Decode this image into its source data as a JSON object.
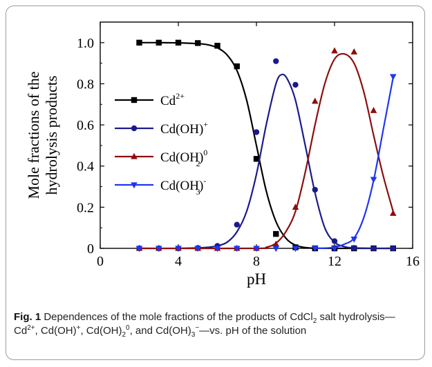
{
  "chart_data": {
    "type": "line",
    "xlabel": "pH",
    "ylabel_lines": [
      "Mole fractions of the",
      "hydrolysis products"
    ],
    "xlim": [
      0,
      16
    ],
    "ylim": [
      0,
      1.1
    ],
    "x_ticks": [
      0,
      4,
      8,
      12,
      16
    ],
    "y_ticks": [
      0,
      0.2,
      0.4,
      0.6,
      0.8,
      1.0
    ],
    "x_tick_labels": [
      "0",
      "4",
      "8",
      "12",
      "16"
    ],
    "y_tick_labels": [
      "0",
      "0.2",
      "0.4",
      "0.6",
      "0.8",
      "1.0"
    ],
    "grid": false,
    "legend_position": "left",
    "series": [
      {
        "name": "Cd2+",
        "legend_base": "Cd",
        "legend_sup": "2+",
        "legend_sub": "",
        "color": "#000000",
        "marker": "square",
        "points": [
          [
            2,
            1.0
          ],
          [
            3,
            1.0
          ],
          [
            4,
            1.0
          ],
          [
            5,
            0.998
          ],
          [
            6,
            0.985
          ],
          [
            7,
            0.885
          ],
          [
            8,
            0.435
          ],
          [
            9,
            0.07
          ],
          [
            10,
            0.005
          ],
          [
            11,
            0.0
          ],
          [
            12,
            0.0
          ],
          [
            13,
            0.0
          ],
          [
            14,
            0.0
          ],
          [
            15,
            0.0
          ]
        ],
        "curve": [
          [
            2,
            1.0
          ],
          [
            3,
            1.0
          ],
          [
            4,
            0.999
          ],
          [
            5,
            0.995
          ],
          [
            5.5,
            0.99
          ],
          [
            6,
            0.975
          ],
          [
            6.5,
            0.94
          ],
          [
            7,
            0.865
          ],
          [
            7.5,
            0.72
          ],
          [
            8,
            0.5
          ],
          [
            8.5,
            0.28
          ],
          [
            9,
            0.13
          ],
          [
            9.5,
            0.05
          ],
          [
            10,
            0.015
          ],
          [
            10.5,
            0.004
          ],
          [
            11,
            0.001
          ],
          [
            12,
            0.0
          ],
          [
            15,
            0.0
          ]
        ]
      },
      {
        "name": "Cd(OH)+",
        "legend_base": "Cd(OH)",
        "legend_sup": "+",
        "legend_sub": "",
        "color": "#1a1a8c",
        "marker": "circle",
        "points": [
          [
            2,
            0.0
          ],
          [
            3,
            0.0
          ],
          [
            4,
            0.0
          ],
          [
            5,
            0.002
          ],
          [
            6,
            0.012
          ],
          [
            7,
            0.115
          ],
          [
            8,
            0.565
          ],
          [
            9,
            0.91
          ],
          [
            10,
            0.795
          ],
          [
            11,
            0.285
          ],
          [
            12,
            0.035
          ],
          [
            13,
            0.002
          ],
          [
            14,
            0.0
          ],
          [
            15,
            0.0
          ]
        ],
        "curve": [
          [
            2,
            0.0
          ],
          [
            4,
            0.0
          ],
          [
            5,
            0.002
          ],
          [
            5.5,
            0.005
          ],
          [
            6,
            0.012
          ],
          [
            6.5,
            0.03
          ],
          [
            7,
            0.08
          ],
          [
            7.5,
            0.18
          ],
          [
            8,
            0.36
          ],
          [
            8.5,
            0.6
          ],
          [
            9,
            0.8
          ],
          [
            9.3,
            0.845
          ],
          [
            9.6,
            0.82
          ],
          [
            10,
            0.72
          ],
          [
            10.5,
            0.5
          ],
          [
            11,
            0.27
          ],
          [
            11.5,
            0.1
          ],
          [
            12,
            0.03
          ],
          [
            12.5,
            0.008
          ],
          [
            13,
            0.002
          ],
          [
            14,
            0.0
          ],
          [
            15,
            0.0
          ]
        ]
      },
      {
        "name": "Cd(OH)2 0",
        "legend_base": "Cd(OH)",
        "legend_sup": "0",
        "legend_sub": "2",
        "color": "#8b0d0d",
        "marker": "triangle-up",
        "points": [
          [
            2,
            0.0
          ],
          [
            3,
            0.0
          ],
          [
            4,
            0.0
          ],
          [
            5,
            0.0
          ],
          [
            6,
            0.0
          ],
          [
            7,
            0.0
          ],
          [
            8,
            0.0
          ],
          [
            9,
            0.02
          ],
          [
            10,
            0.2
          ],
          [
            11,
            0.715
          ],
          [
            12,
            0.96
          ],
          [
            13,
            0.955
          ],
          [
            14,
            0.67
          ],
          [
            15,
            0.17
          ]
        ],
        "curve": [
          [
            2,
            0.0
          ],
          [
            8,
            0.0
          ],
          [
            8.5,
            0.005
          ],
          [
            9,
            0.025
          ],
          [
            9.5,
            0.08
          ],
          [
            10,
            0.18
          ],
          [
            10.5,
            0.37
          ],
          [
            11,
            0.6
          ],
          [
            11.5,
            0.8
          ],
          [
            12,
            0.92
          ],
          [
            12.5,
            0.945
          ],
          [
            13,
            0.9
          ],
          [
            13.5,
            0.76
          ],
          [
            14,
            0.55
          ],
          [
            14.5,
            0.35
          ],
          [
            15,
            0.18
          ]
        ]
      },
      {
        "name": "Cd(OH)3 -",
        "legend_base": "Cd(OH)",
        "legend_sup": "-",
        "legend_sub": "3",
        "color": "#1f35f0",
        "marker": "triangle-down",
        "points": [
          [
            2,
            0.0
          ],
          [
            3,
            0.0
          ],
          [
            4,
            0.0
          ],
          [
            5,
            0.0
          ],
          [
            6,
            0.0
          ],
          [
            7,
            0.0
          ],
          [
            8,
            0.0
          ],
          [
            9,
            0.0
          ],
          [
            10,
            0.0
          ],
          [
            11,
            0.0
          ],
          [
            12,
            0.0
          ],
          [
            13,
            0.045
          ],
          [
            14,
            0.335
          ],
          [
            15,
            0.835
          ]
        ],
        "curve": [
          [
            11,
            0.0
          ],
          [
            11.5,
            0.001
          ],
          [
            12,
            0.005
          ],
          [
            12.5,
            0.02
          ],
          [
            13,
            0.05
          ],
          [
            13.5,
            0.15
          ],
          [
            14,
            0.33
          ],
          [
            14.5,
            0.58
          ],
          [
            15,
            0.83
          ]
        ]
      }
    ]
  },
  "caption": {
    "label": "Fig. 1",
    "text": " Dependences of the mole fractions of the products of CdCl",
    "sub1": "2",
    "text2": " salt hydrolysis—Cd",
    "sup1": "2+",
    "text3": ", Cd(OH)",
    "sup2": "+",
    "text4": ", Cd(OH)",
    "sub2": "2",
    "sup3": "0",
    "text5": ", and Cd(OH)",
    "sub3": "3",
    "sup4": "−",
    "text6": "—vs. pH of the solution"
  }
}
